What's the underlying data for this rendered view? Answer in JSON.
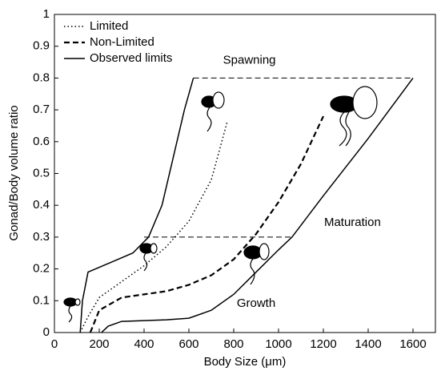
{
  "chart_data": {
    "type": "line",
    "xlabel": "Body Size (μm)",
    "ylabel": "Gonad/Body volume ratio",
    "xlim": [
      0,
      1700
    ],
    "ylim": [
      0,
      1
    ],
    "xticks": [
      0,
      200,
      400,
      600,
      800,
      1000,
      1200,
      1400,
      1600
    ],
    "yticks": [
      0,
      0.1,
      0.2,
      0.3,
      0.4,
      0.5,
      0.6,
      0.7,
      0.8,
      0.9,
      1
    ],
    "legend": "upper left",
    "series": [
      {
        "name": "Limited",
        "color": "#000000",
        "dash": "dotted",
        "x": [
          115,
          150,
          200,
          300,
          400,
          500,
          600,
          700,
          770
        ],
        "values": [
          0,
          0.05,
          0.11,
          0.16,
          0.21,
          0.27,
          0.35,
          0.48,
          0.66
        ]
      },
      {
        "name": "Non-Limited",
        "color": "#000000",
        "dash": "dashed",
        "x": [
          160,
          200,
          300,
          400,
          500,
          600,
          700,
          800,
          900,
          1000,
          1100,
          1200
        ],
        "values": [
          0,
          0.07,
          0.11,
          0.12,
          0.13,
          0.15,
          0.18,
          0.23,
          0.31,
          0.41,
          0.53,
          0.68
        ]
      },
      {
        "name": "Observed limits",
        "color": "#000000",
        "dash": "solid",
        "x": [
          115,
          125,
          150,
          250,
          350,
          420,
          480,
          530,
          580,
          620,
          null,
          210,
          240,
          300,
          500,
          600,
          700,
          800,
          900,
          1000,
          1060,
          1200,
          1400,
          1600
        ],
        "values": [
          0,
          0.1,
          0.19,
          0.22,
          0.25,
          0.3,
          0.4,
          0.55,
          0.7,
          0.8,
          null,
          0,
          0.02,
          0.035,
          0.04,
          0.045,
          0.07,
          0.12,
          0.19,
          0.26,
          0.3,
          0.43,
          0.61,
          0.8
        ]
      }
    ],
    "hlines": [
      {
        "y": 0.8,
        "xmin": 620,
        "xmax": 1590
      },
      {
        "y": 0.3,
        "xmin": 400,
        "xmax": 1060
      }
    ],
    "annotations": [
      {
        "text": "Spawning",
        "x": 870,
        "y": 0.855
      },
      {
        "text": "Maturation",
        "x": 1330,
        "y": 0.345
      },
      {
        "text": "Growth",
        "x": 900,
        "y": 0.09
      }
    ]
  }
}
